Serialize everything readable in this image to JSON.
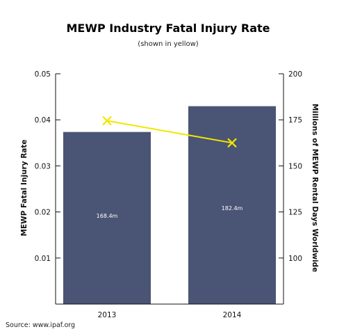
{
  "chart_data": {
    "type": "bar",
    "title": "MEWP Industry Fatal Injury Rate",
    "subtitle": "(shown in yellow)",
    "categories": [
      "2013",
      "2014"
    ],
    "bars": {
      "axis": "right",
      "values": [
        168.4,
        182.4
      ],
      "labels": [
        "168.4m",
        "182.4m"
      ],
      "color": "#4a5474"
    },
    "line": {
      "axis": "left",
      "values": [
        0.0398,
        0.035
      ],
      "color": "#f2e600",
      "marker": "x"
    },
    "ylabel_left": "MEWP Fatal Injury Rate",
    "ylabel_right": "Millions of MEWP Rental Days Worldwide",
    "ylim_left": [
      0,
      0.05
    ],
    "yticks_left": [
      "0.01",
      "0.02",
      "0.03",
      "0.04",
      "0.05"
    ],
    "ylim_right": [
      75,
      200
    ],
    "yticks_right": [
      "100",
      "125",
      "150",
      "175",
      "200"
    ],
    "grid": false
  },
  "source": "Source: www.ipaf.org"
}
